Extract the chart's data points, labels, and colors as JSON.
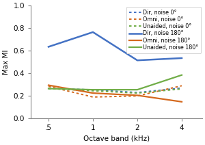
{
  "x": [
    0.5,
    1,
    2,
    4
  ],
  "series": [
    {
      "key": "Dir_0",
      "y": [
        0.265,
        0.255,
        0.23,
        0.27
      ],
      "color": "#4472C4",
      "linestyle": "dotted",
      "linewidth": 1.4,
      "label": "Dir, noise 0°"
    },
    {
      "key": "Omni_0",
      "y": [
        0.285,
        0.19,
        0.2,
        0.29
      ],
      "color": "#D4691E",
      "linestyle": "dotted",
      "linewidth": 1.4,
      "label": "Omni, noise 0°"
    },
    {
      "key": "Unaided_0",
      "y": [
        0.265,
        0.245,
        0.225,
        0.262
      ],
      "color": "#70AD47",
      "linestyle": "dotted",
      "linewidth": 1.4,
      "label": "Unaided, noise 0°"
    },
    {
      "key": "Dir_180",
      "y": [
        0.635,
        0.765,
        0.515,
        0.535
      ],
      "color": "#4472C4",
      "linestyle": "solid",
      "linewidth": 1.8,
      "label": "Dir, noise 180°"
    },
    {
      "key": "Omni_180",
      "y": [
        0.295,
        0.225,
        0.205,
        0.148
      ],
      "color": "#D4691E",
      "linestyle": "solid",
      "linewidth": 1.6,
      "label": "Omni, noise 180°"
    },
    {
      "key": "Unaided_180",
      "y": [
        0.265,
        0.255,
        0.255,
        0.385
      ],
      "color": "#70AD47",
      "linestyle": "solid",
      "linewidth": 1.6,
      "label": "Unaided, noise 180°"
    }
  ],
  "xlabel": "Octave band (kHz)",
  "ylabel": "Max MI",
  "xlim": [
    0.38,
    5.5
  ],
  "ylim": [
    0,
    1
  ],
  "yticks": [
    0,
    0.2,
    0.4,
    0.6,
    0.8,
    1
  ],
  "xtick_labels": [
    ".5",
    "1",
    "2",
    "4"
  ],
  "xtick_positions": [
    0.5,
    1,
    2,
    4
  ],
  "background_color": "#ffffff",
  "legend_fontsize": 5.8,
  "axis_fontsize": 7.5
}
